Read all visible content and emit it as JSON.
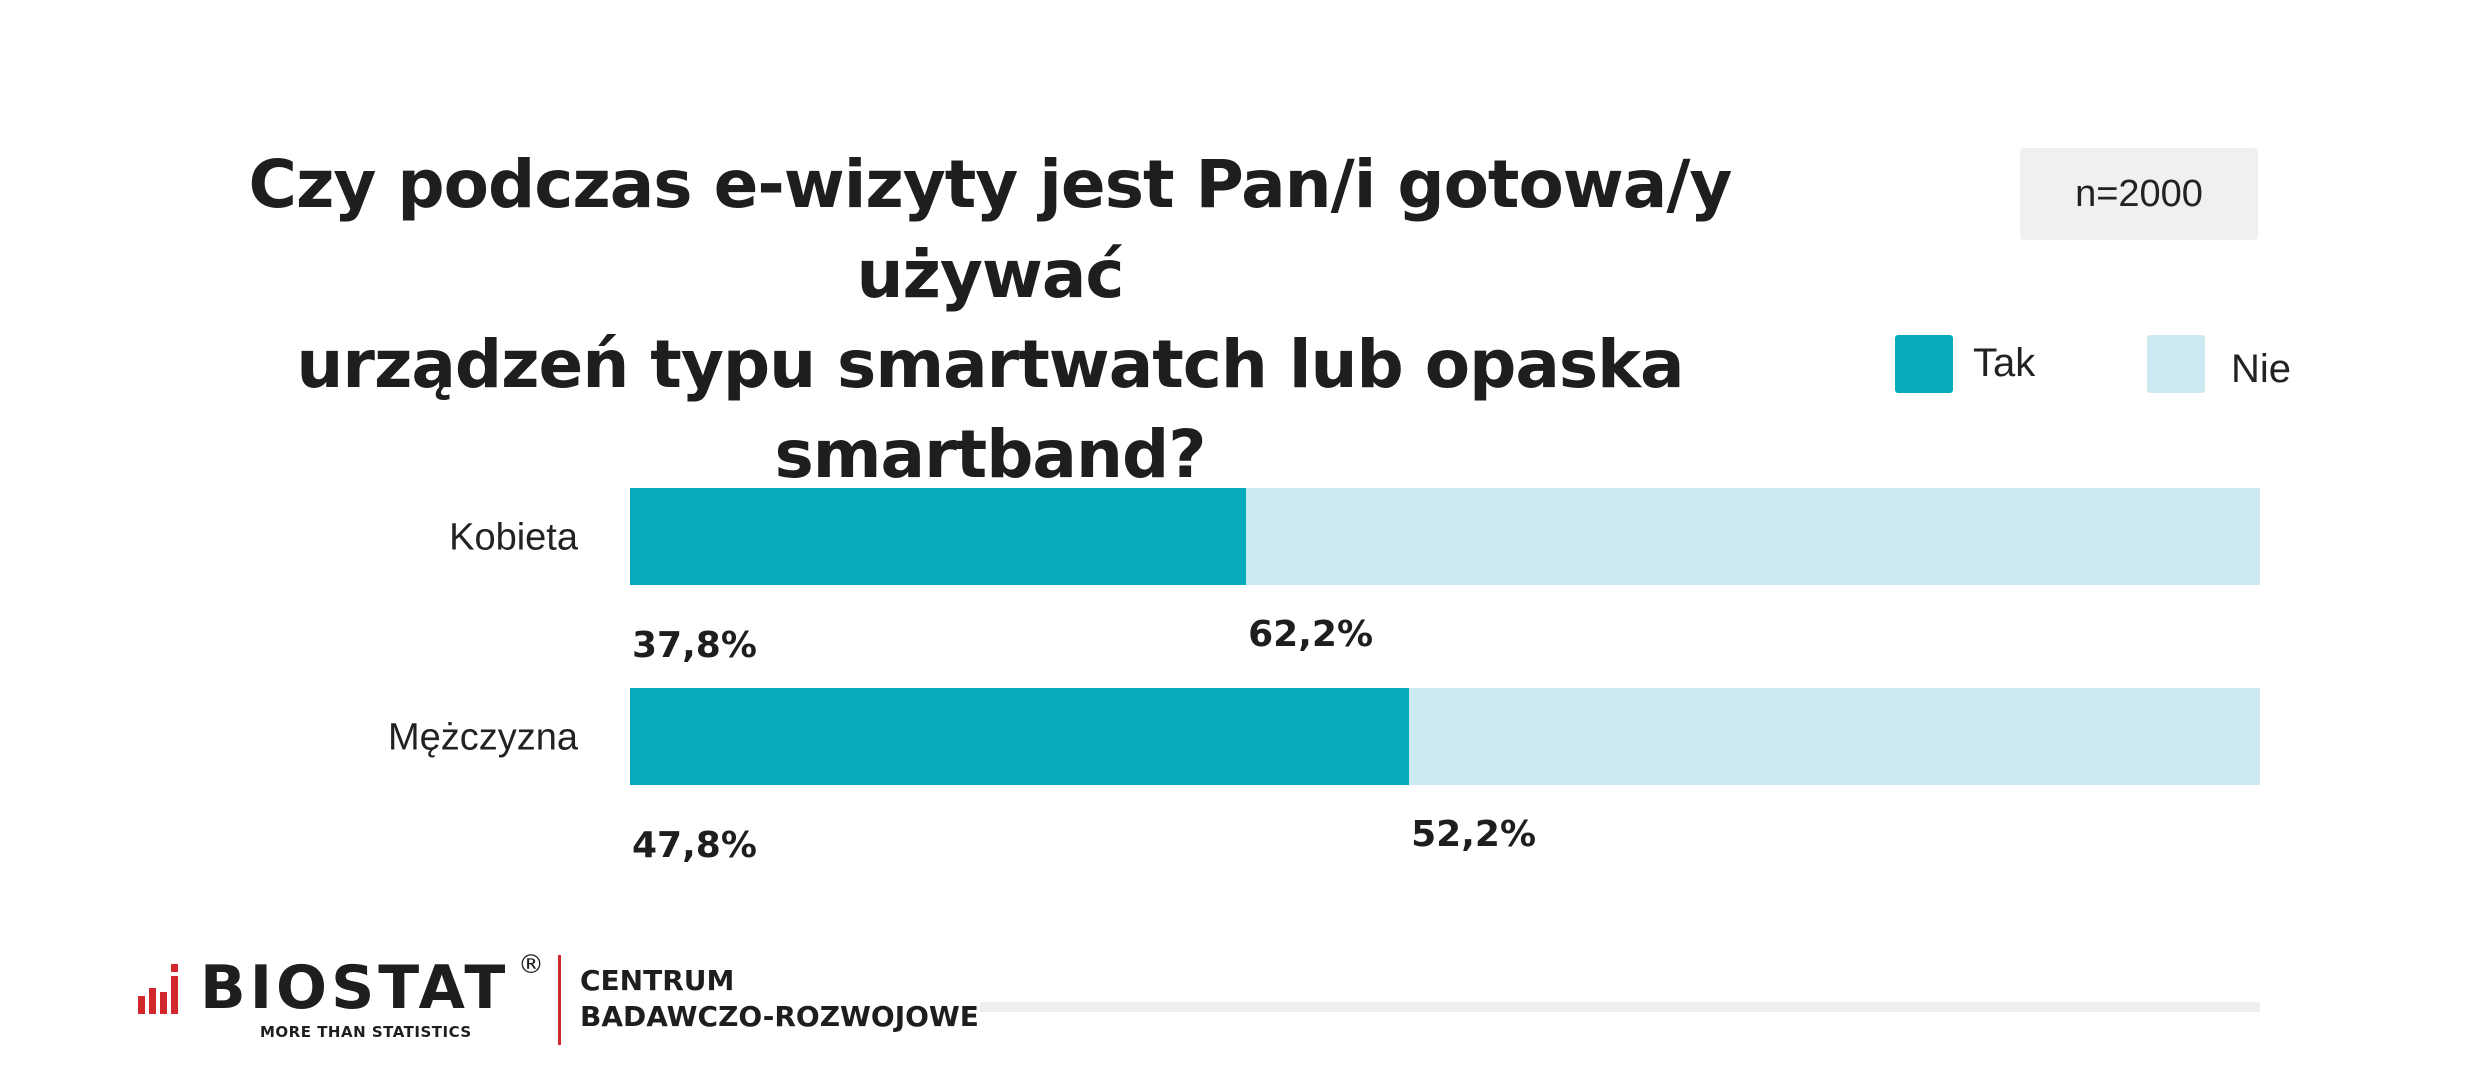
{
  "title": {
    "line1": "Czy podczas e-wizyty jest Pan/i gotowa/y używać",
    "line2": "urządzeń typu smartwatch lub opaska smartband?"
  },
  "sample": "n=2000",
  "legend": [
    {
      "label": "Tak",
      "color": "#05abb8"
    },
    {
      "label": "Nie",
      "color": "#cde9f1"
    }
  ],
  "chart_data": {
    "type": "bar",
    "orientation": "horizontal",
    "stacked": true,
    "categories": [
      "Kobieta",
      "Mężczyzna"
    ],
    "series": [
      {
        "name": "Tak",
        "values": [
          37.8,
          47.8
        ],
        "labels": [
          "37,8%",
          "47,8%"
        ],
        "color": "#05abb8"
      },
      {
        "name": "Nie",
        "values": [
          62.2,
          52.2
        ],
        "labels": [
          "62,2%",
          "52,2%"
        ],
        "color": "#cde9f1"
      }
    ],
    "xlim": [
      0,
      100
    ],
    "grid": false,
    "legend_position": "top-right"
  },
  "footer": {
    "brand": "BIOSTAT",
    "registered": "®",
    "tagline": "MORE THAN STATISTICS",
    "center_line1": "CENTRUM",
    "center_line2": "BADAWCZO-ROZWOJOWE",
    "brand_accent": "#d2282d"
  }
}
